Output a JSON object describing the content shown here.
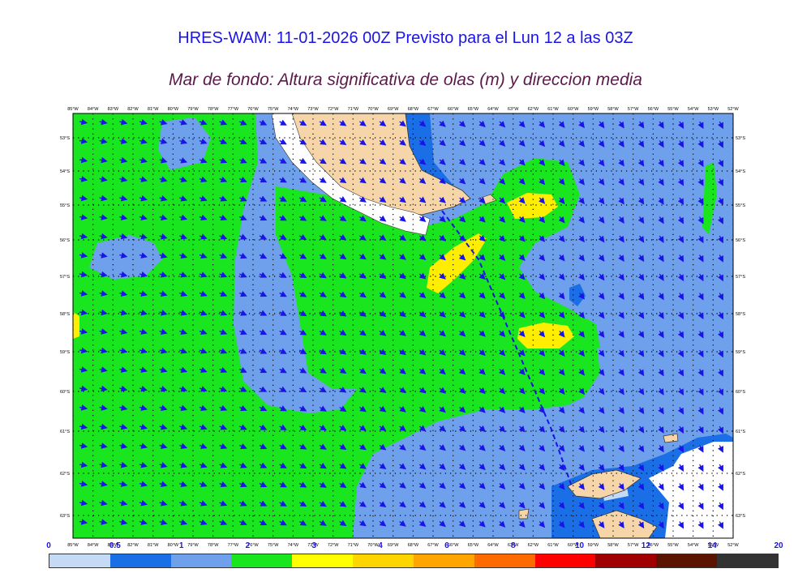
{
  "header": {
    "title": "HRES-WAM: 11-01-2026 00Z Previsto para el Lun 12 a las 03Z",
    "subtitle": "Mar de fondo: Altura significativa de olas (m) y direccion media"
  },
  "map": {
    "lon_labels": [
      "85°W",
      "84°W",
      "83°W",
      "82°W",
      "81°W",
      "80°W",
      "79°W",
      "78°W",
      "77°W",
      "76°W",
      "75°W",
      "74°W",
      "73°W",
      "72°W",
      "71°W",
      "70°W",
      "69°W",
      "68°W",
      "67°W",
      "66°W",
      "65°W",
      "64°W",
      "63°W",
      "62°W",
      "61°W",
      "60°W",
      "59°W",
      "58°W",
      "57°W",
      "56°W",
      "55°W",
      "54°W",
      "53°W",
      "52°W"
    ],
    "lat_labels": [
      "53°S",
      "54°S",
      "55°S",
      "56°S",
      "57°S",
      "58°S",
      "59°S",
      "60°S",
      "61°S",
      "62°S",
      "63°S"
    ],
    "colors": {
      "land": "#f6d5a8",
      "ice": "#ffffff",
      "light_blue": "#c4daf5",
      "blue": "#1a6fe6",
      "mid_blue": "#6fa0ec",
      "green": "#19e61e",
      "yellow": "#ffee00",
      "arrow": "#1a14e6"
    }
  },
  "colorbar": {
    "ticks": [
      "0",
      "0.5",
      "1",
      "2",
      "3",
      "4",
      "6",
      "8",
      "10",
      "12",
      "14",
      "20"
    ],
    "colors": [
      "#c4daf5",
      "#1a6fe6",
      "#6fa0ec",
      "#19e61e",
      "#ffff00",
      "#ffd500",
      "#ffa500",
      "#ff6a00",
      "#ff0000",
      "#a00000",
      "#5a1400",
      "#333333"
    ]
  }
}
